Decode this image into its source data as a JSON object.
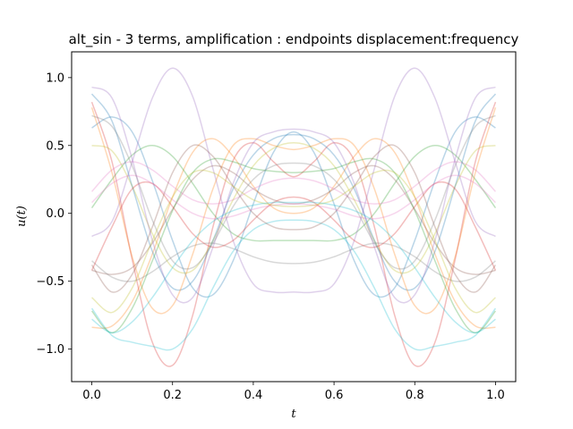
{
  "chart_data": {
    "type": "line",
    "title": "alt_sin - 3 terms, amplification : endpoints displacement:frequency",
    "xlabel": "t",
    "ylabel": "u(t)",
    "xlim": [
      -0.05,
      1.05
    ],
    "ylim": [
      -1.24,
      1.19
    ],
    "xticks": [
      "0.0",
      "0.2",
      "0.4",
      "0.6",
      "0.8",
      "1.0"
    ],
    "yticks": [
      "−1.0",
      "−0.5",
      "0.0",
      "0.5",
      "1.0"
    ],
    "grid": false,
    "legend": "none",
    "line_opacity": 0.3,
    "colors": [
      "#1f77b4",
      "#ff7f0e",
      "#2ca02c",
      "#d62728",
      "#9467bd",
      "#8c564b",
      "#e377c2",
      "#7f7f7f",
      "#bcbd22",
      "#17becf"
    ],
    "series": [
      {
        "x": [
          0,
          0.05,
          0.1,
          0.15,
          0.2,
          0.25,
          0.3,
          0.35,
          0.4,
          0.45,
          0.5,
          0.55,
          0.6,
          0.65,
          0.7,
          0.75,
          0.8,
          0.85,
          0.9,
          0.95,
          1.0
        ],
        "y": [
          0.63,
          0.71,
          0.6,
          0.24,
          -0.2,
          -0.55,
          -0.6,
          -0.35,
          0.07,
          0.45,
          0.6,
          0.45,
          0.07,
          -0.35,
          -0.6,
          -0.55,
          -0.2,
          0.24,
          0.6,
          0.71,
          0.63
        ]
      },
      {
        "x": [
          0,
          0.05,
          0.1,
          0.15,
          0.2,
          0.25,
          0.3,
          0.35,
          0.4,
          0.45,
          0.5,
          0.55,
          0.6,
          0.65,
          0.7,
          0.75,
          0.8,
          0.85,
          0.9,
          0.95,
          1.0
        ],
        "y": [
          -0.84,
          -0.83,
          -0.65,
          -0.3,
          0.12,
          0.45,
          0.55,
          0.42,
          0.2,
          0.04,
          0.0,
          0.04,
          0.2,
          0.42,
          0.55,
          0.45,
          0.12,
          -0.3,
          -0.65,
          -0.83,
          -0.84
        ]
      },
      {
        "x": [
          0,
          0.05,
          0.1,
          0.15,
          0.2,
          0.25,
          0.3,
          0.35,
          0.4,
          0.45,
          0.5,
          0.55,
          0.6,
          0.65,
          0.7,
          0.75,
          0.8,
          0.85,
          0.9,
          0.95,
          1.0
        ],
        "y": [
          0.04,
          0.25,
          0.43,
          0.5,
          0.42,
          0.22,
          0.0,
          -0.15,
          -0.2,
          -0.2,
          -0.2,
          -0.2,
          -0.2,
          -0.15,
          0.0,
          0.22,
          0.42,
          0.5,
          0.43,
          0.25,
          0.04
        ]
      },
      {
        "x": [
          0,
          0.05,
          0.1,
          0.15,
          0.2,
          0.25,
          0.3,
          0.35,
          0.4,
          0.45,
          0.5,
          0.55,
          0.6,
          0.65,
          0.7,
          0.75,
          0.8,
          0.85,
          0.9,
          0.95,
          1.0
        ],
        "y": [
          0.82,
          0.38,
          -0.34,
          -0.95,
          -1.12,
          -0.75,
          -0.1,
          0.39,
          0.52,
          0.38,
          0.27,
          0.38,
          0.52,
          0.39,
          -0.1,
          -0.75,
          -1.12,
          -0.95,
          -0.34,
          0.38,
          0.82
        ]
      },
      {
        "x": [
          0,
          0.05,
          0.1,
          0.15,
          0.2,
          0.25,
          0.3,
          0.35,
          0.4,
          0.45,
          0.5,
          0.55,
          0.6,
          0.65,
          0.7,
          0.75,
          0.8,
          0.85,
          0.9,
          0.95,
          1.0
        ],
        "y": [
          -0.17,
          -0.06,
          0.38,
          0.85,
          1.07,
          0.86,
          0.33,
          -0.2,
          -0.52,
          -0.58,
          -0.58,
          -0.58,
          -0.52,
          -0.2,
          0.33,
          0.86,
          1.07,
          0.85,
          0.38,
          -0.06,
          -0.17
        ]
      },
      {
        "x": [
          0,
          0.05,
          0.1,
          0.15,
          0.2,
          0.25,
          0.3,
          0.35,
          0.4,
          0.45,
          0.5,
          0.55,
          0.6,
          0.65,
          0.7,
          0.75,
          0.8,
          0.85,
          0.9,
          0.95,
          1.0
        ],
        "y": [
          -0.42,
          -0.45,
          -0.4,
          -0.22,
          0.03,
          0.25,
          0.35,
          0.3,
          0.18,
          0.1,
          0.07,
          0.1,
          0.18,
          0.3,
          0.35,
          0.25,
          0.03,
          -0.22,
          -0.4,
          -0.45,
          -0.42
        ]
      },
      {
        "x": [
          0,
          0.05,
          0.1,
          0.15,
          0.2,
          0.25,
          0.3,
          0.35,
          0.4,
          0.45,
          0.5,
          0.55,
          0.6,
          0.65,
          0.7,
          0.75,
          0.8,
          0.85,
          0.9,
          0.95,
          1.0
        ],
        "y": [
          0.16,
          0.32,
          0.38,
          0.32,
          0.2,
          0.1,
          0.07,
          0.1,
          0.18,
          0.24,
          0.26,
          0.24,
          0.18,
          0.1,
          0.07,
          0.1,
          0.2,
          0.32,
          0.38,
          0.32,
          0.16
        ]
      },
      {
        "x": [
          0,
          0.05,
          0.1,
          0.15,
          0.2,
          0.25,
          0.3,
          0.35,
          0.4,
          0.45,
          0.5,
          0.55,
          0.6,
          0.65,
          0.7,
          0.75,
          0.8,
          0.85,
          0.9,
          0.95,
          1.0
        ],
        "y": [
          -0.35,
          -0.47,
          -0.5,
          -0.43,
          -0.32,
          -0.24,
          -0.22,
          -0.26,
          -0.32,
          -0.36,
          -0.37,
          -0.36,
          -0.32,
          -0.26,
          -0.22,
          -0.24,
          -0.32,
          -0.43,
          -0.5,
          -0.47,
          -0.35
        ]
      },
      {
        "x": [
          0,
          0.05,
          0.1,
          0.15,
          0.2,
          0.25,
          0.3,
          0.35,
          0.4,
          0.45,
          0.5,
          0.55,
          0.6,
          0.65,
          0.7,
          0.75,
          0.8,
          0.85,
          0.9,
          0.95,
          1.0
        ],
        "y": [
          0.5,
          0.46,
          0.2,
          -0.15,
          -0.4,
          -0.42,
          -0.2,
          0.1,
          0.35,
          0.48,
          0.52,
          0.48,
          0.35,
          0.1,
          -0.2,
          -0.42,
          -0.4,
          -0.15,
          0.2,
          0.46,
          0.5
        ]
      },
      {
        "x": [
          0,
          0.05,
          0.1,
          0.15,
          0.2,
          0.25,
          0.3,
          0.35,
          0.4,
          0.45,
          0.5,
          0.55,
          0.6,
          0.65,
          0.7,
          0.75,
          0.8,
          0.85,
          0.9,
          0.95,
          1.0
        ],
        "y": [
          -0.7,
          -0.9,
          -0.95,
          -0.98,
          -1.0,
          -0.85,
          -0.55,
          -0.28,
          -0.12,
          -0.06,
          -0.05,
          -0.06,
          -0.12,
          -0.28,
          -0.55,
          -0.85,
          -1.0,
          -0.98,
          -0.95,
          -0.9,
          -0.7
        ]
      },
      {
        "x": [
          0,
          0.05,
          0.1,
          0.15,
          0.2,
          0.25,
          0.3,
          0.35,
          0.4,
          0.45,
          0.5,
          0.55,
          0.6,
          0.65,
          0.7,
          0.75,
          0.8,
          0.85,
          0.9,
          0.95,
          1.0
        ],
        "y": [
          0.88,
          0.68,
          0.2,
          -0.28,
          -0.55,
          -0.5,
          -0.2,
          0.18,
          0.43,
          0.55,
          0.58,
          0.55,
          0.43,
          0.18,
          -0.2,
          -0.5,
          -0.55,
          -0.28,
          0.2,
          0.68,
          0.88
        ]
      },
      {
        "x": [
          0,
          0.05,
          0.1,
          0.15,
          0.2,
          0.25,
          0.3,
          0.35,
          0.4,
          0.45,
          0.5,
          0.55,
          0.6,
          0.65,
          0.7,
          0.75,
          0.8,
          0.85,
          0.9,
          0.95,
          1.0
        ],
        "y": [
          0.78,
          0.3,
          -0.32,
          -0.7,
          -0.68,
          -0.3,
          0.18,
          0.5,
          0.55,
          0.5,
          0.47,
          0.5,
          0.55,
          0.5,
          0.18,
          -0.3,
          -0.68,
          -0.7,
          -0.32,
          0.3,
          0.78
        ]
      },
      {
        "x": [
          0,
          0.05,
          0.1,
          0.15,
          0.2,
          0.25,
          0.3,
          0.35,
          0.4,
          0.45,
          0.5,
          0.55,
          0.6,
          0.65,
          0.7,
          0.75,
          0.8,
          0.85,
          0.9,
          0.95,
          1.0
        ],
        "y": [
          -0.72,
          -0.88,
          -0.7,
          -0.35,
          0.02,
          0.3,
          0.4,
          0.38,
          0.33,
          0.31,
          0.3,
          0.31,
          0.33,
          0.38,
          0.4,
          0.3,
          0.02,
          -0.35,
          -0.7,
          -0.88,
          -0.72
        ]
      },
      {
        "x": [
          0,
          0.05,
          0.1,
          0.15,
          0.2,
          0.25,
          0.3,
          0.35,
          0.4,
          0.45,
          0.5,
          0.55,
          0.6,
          0.65,
          0.7,
          0.75,
          0.8,
          0.85,
          0.9,
          0.95,
          1.0
        ],
        "y": [
          -0.42,
          -0.1,
          0.18,
          0.22,
          0.05,
          -0.15,
          -0.25,
          -0.2,
          -0.05,
          0.08,
          0.12,
          0.08,
          -0.05,
          -0.2,
          -0.25,
          -0.15,
          0.05,
          0.22,
          0.18,
          -0.1,
          -0.42
        ]
      },
      {
        "x": [
          0,
          0.05,
          0.1,
          0.15,
          0.2,
          0.25,
          0.3,
          0.35,
          0.4,
          0.45,
          0.5,
          0.55,
          0.6,
          0.65,
          0.7,
          0.75,
          0.8,
          0.85,
          0.9,
          0.95,
          1.0
        ],
        "y": [
          0.93,
          0.85,
          0.4,
          -0.2,
          -0.6,
          -0.62,
          -0.25,
          0.22,
          0.52,
          0.6,
          0.62,
          0.6,
          0.52,
          0.22,
          -0.25,
          -0.62,
          -0.6,
          -0.2,
          0.4,
          0.85,
          0.93
        ]
      },
      {
        "x": [
          0,
          0.05,
          0.1,
          0.15,
          0.2,
          0.25,
          0.3,
          0.35,
          0.4,
          0.45,
          0.5,
          0.55,
          0.6,
          0.65,
          0.7,
          0.75,
          0.8,
          0.85,
          0.9,
          0.95,
          1.0
        ],
        "y": [
          -0.38,
          -0.58,
          -0.45,
          -0.1,
          0.3,
          0.5,
          0.42,
          0.2,
          0.0,
          -0.1,
          -0.12,
          -0.1,
          0.0,
          0.2,
          0.42,
          0.5,
          0.3,
          -0.1,
          -0.45,
          -0.58,
          -0.38
        ]
      },
      {
        "x": [
          0,
          0.05,
          0.1,
          0.15,
          0.2,
          0.25,
          0.3,
          0.35,
          0.4,
          0.45,
          0.5,
          0.55,
          0.6,
          0.65,
          0.7,
          0.75,
          0.8,
          0.85,
          0.9,
          0.95,
          1.0
        ],
        "y": [
          0.08,
          0.22,
          0.28,
          0.22,
          0.1,
          0.0,
          -0.04,
          -0.02,
          0.03,
          0.06,
          0.07,
          0.06,
          0.03,
          -0.02,
          -0.04,
          0.0,
          0.1,
          0.22,
          0.28,
          0.22,
          0.08
        ]
      },
      {
        "x": [
          0,
          0.05,
          0.1,
          0.15,
          0.2,
          0.25,
          0.3,
          0.35,
          0.4,
          0.45,
          0.5,
          0.55,
          0.6,
          0.65,
          0.7,
          0.75,
          0.8,
          0.85,
          0.9,
          0.95,
          1.0
        ],
        "y": [
          0.72,
          0.64,
          0.35,
          -0.05,
          -0.35,
          -0.4,
          -0.22,
          0.05,
          0.25,
          0.35,
          0.37,
          0.35,
          0.25,
          0.05,
          -0.22,
          -0.4,
          -0.35,
          -0.05,
          0.35,
          0.64,
          0.72
        ]
      },
      {
        "x": [
          0,
          0.05,
          0.1,
          0.15,
          0.2,
          0.25,
          0.3,
          0.35,
          0.4,
          0.45,
          0.5,
          0.55,
          0.6,
          0.65,
          0.7,
          0.75,
          0.8,
          0.85,
          0.9,
          0.95,
          1.0
        ],
        "y": [
          -0.62,
          -0.73,
          -0.55,
          -0.2,
          0.12,
          0.3,
          0.3,
          0.2,
          0.1,
          0.06,
          0.05,
          0.06,
          0.1,
          0.2,
          0.3,
          0.3,
          0.12,
          -0.2,
          -0.55,
          -0.73,
          -0.62
        ]
      },
      {
        "x": [
          0,
          0.05,
          0.1,
          0.15,
          0.2,
          0.25,
          0.3,
          0.35,
          0.4,
          0.45,
          0.5,
          0.55,
          0.6,
          0.65,
          0.7,
          0.75,
          0.8,
          0.85,
          0.9,
          0.95,
          1.0
        ],
        "y": [
          -0.78,
          -0.88,
          -0.8,
          -0.62,
          -0.4,
          -0.2,
          -0.06,
          0.02,
          0.06,
          0.08,
          0.08,
          0.08,
          0.06,
          0.02,
          -0.06,
          -0.2,
          -0.4,
          -0.62,
          -0.8,
          -0.88,
          -0.78
        ]
      }
    ]
  }
}
